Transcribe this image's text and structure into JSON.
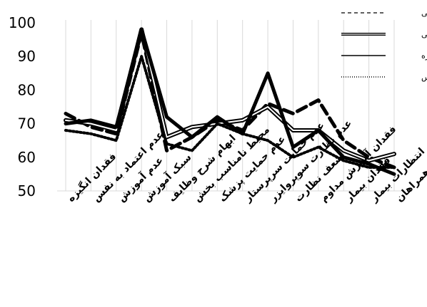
{
  "chart_data": {
    "type": "line",
    "categories": [
      "فقدان انگیزه",
      "عدم اعتماد به نفس",
      "عدم آموزش",
      "سبک آموزش",
      "ابهام شرح وظایف",
      "محیط نامناسب بخش",
      "عدم حمایت پزشک",
      "عدم حمایت سرپرستار",
      "عدم نظارت سوپروایزر",
      "ضعف نظارت",
      "فقدان آموزش مداوم",
      "فقدان بیمار",
      "انتظارات بیمار",
      "انتظارات همراهان"
    ],
    "series": [
      {
        "name": "داخلی",
        "values": [
          73,
          69,
          67,
          97,
          62,
          66,
          71,
          68,
          76,
          73,
          77,
          65,
          60,
          57
        ]
      },
      {
        "name": "جراحی",
        "values": [
          71,
          70,
          68,
          98,
          66,
          69,
          70,
          71,
          75,
          68,
          68,
          62,
          59,
          61
        ]
      },
      {
        "name": "ویژه",
        "values": [
          70,
          71,
          69,
          98,
          72,
          66,
          72,
          67,
          85,
          63,
          68,
          60,
          58,
          55
        ]
      },
      {
        "name": "اورژانس",
        "values": [
          68,
          67,
          65,
          90,
          64,
          62,
          70,
          67,
          65,
          60,
          63,
          59,
          57,
          57
        ]
      }
    ],
    "ylim": [
      50,
      100
    ],
    "yticks": [
      50,
      60,
      70,
      80,
      90,
      100
    ],
    "legend_position": "top-right",
    "grid": "vertical",
    "legend_texts": [
      "داخلی",
      "جراحی",
      "ویژه",
      "اورژانس"
    ]
  }
}
